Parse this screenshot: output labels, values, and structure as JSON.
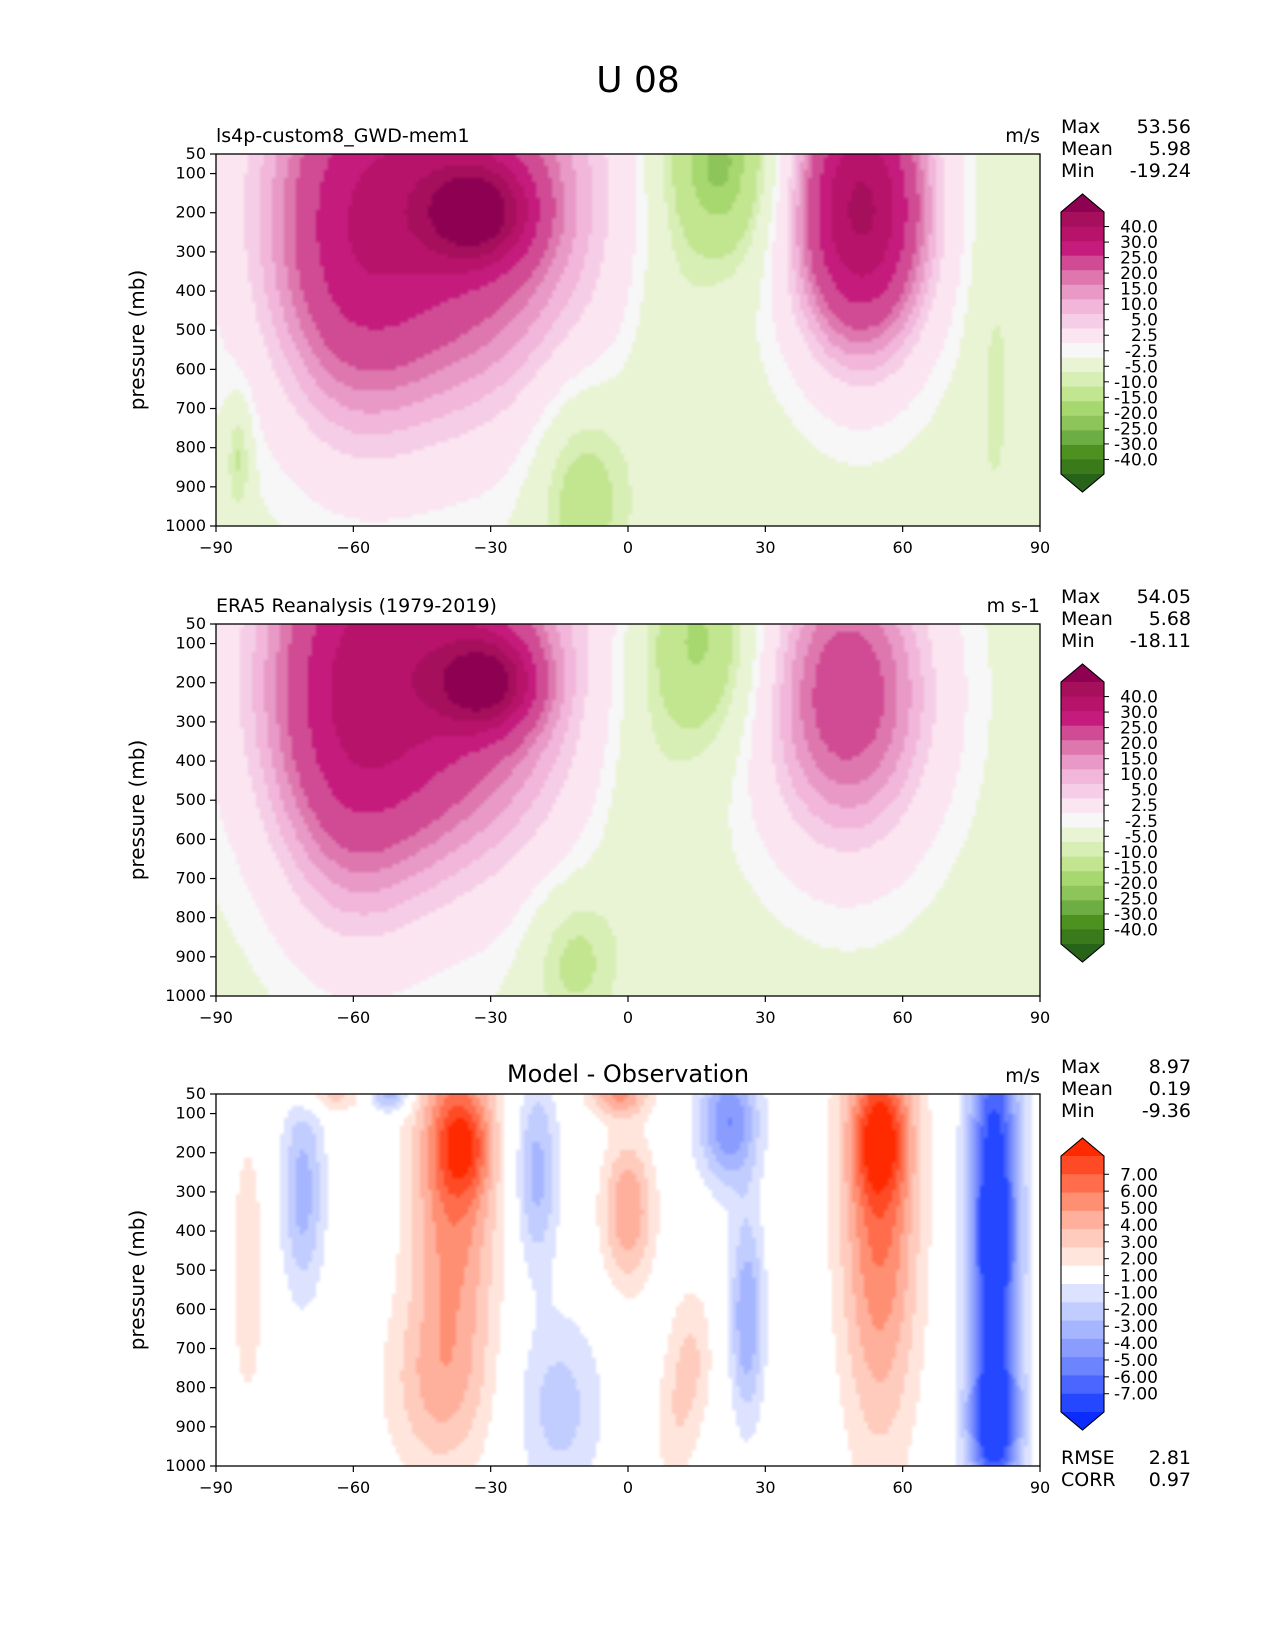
{
  "figure": {
    "title": "U 08"
  },
  "chart_data": [
    {
      "type": "contour",
      "panel": "model",
      "title_left": "ls4p-custom8_GWD-mem1",
      "title_center": "",
      "units": "m/s",
      "xlabel": "",
      "ylabel": "pressure (mb)",
      "xlim": [
        -90,
        90
      ],
      "ylim": [
        1000,
        50
      ],
      "xticks": [
        "−90",
        "−60",
        "−30",
        "0",
        "30",
        "60",
        "90"
      ],
      "yticks": [
        "50",
        "100",
        "200",
        "300",
        "400",
        "500",
        "600",
        "700",
        "800",
        "900",
        "1000"
      ],
      "stats": {
        "max_label": "Max",
        "max": "53.56",
        "mean_label": "Mean",
        "mean": "5.98",
        "min_label": "Min",
        "min": "-19.24"
      },
      "levels": [
        "40.0",
        "30.0",
        "25.0",
        "20.0",
        "15.0",
        "10.0",
        "5.0",
        "2.5",
        "-2.5",
        "-5.0",
        "-10.0",
        "-15.0",
        "-20.0",
        "-25.0",
        "-30.0",
        "-40.0"
      ],
      "colorbar_colors": [
        "#8e0152",
        "#a50f5c",
        "#b7136a",
        "#c51b7d",
        "#d04b93",
        "#de77ae",
        "#e899c5",
        "#f1b6da",
        "#f6cde6",
        "#fbe5f1",
        "#f7f7f7",
        "#e9f4d4",
        "#d7eeb5",
        "#c2e58f",
        "#a7d870",
        "#8ec55a",
        "#6ead44",
        "#4d9221",
        "#3a7a1a",
        "#276419"
      ],
      "features": [
        {
          "kind": "blob",
          "lat": -42,
          "p": 160,
          "lat_halfwidth": 40,
          "p_halfwidth": 620,
          "value": 28
        },
        {
          "kind": "blob",
          "lat": -33,
          "p": 200,
          "lat_halfwidth": 12,
          "p_halfwidth": 130,
          "value": 22
        },
        {
          "kind": "blob",
          "lat": -62,
          "p": 350,
          "lat_halfwidth": 18,
          "p_halfwidth": 520,
          "value": 9
        },
        {
          "kind": "blob",
          "lat": 51,
          "p": 190,
          "lat_halfwidth": 17,
          "p_halfwidth": 420,
          "value": 36
        },
        {
          "kind": "blob",
          "lat": 20,
          "p": 80,
          "lat_halfwidth": 14,
          "p_halfwidth": 280,
          "value": -16
        },
        {
          "kind": "blob",
          "lat": -10,
          "p": 900,
          "lat_halfwidth": 11,
          "p_halfwidth": 280,
          "value": -10
        },
        {
          "kind": "blob",
          "lat": 8,
          "p": 550,
          "lat_halfwidth": 9,
          "p_halfwidth": 320,
          "value": -4
        },
        {
          "kind": "blob",
          "lat": 80,
          "p": 600,
          "lat_halfwidth": 5,
          "p_halfwidth": 500,
          "value": -3.5
        },
        {
          "kind": "blob",
          "lat": -85,
          "p": 820,
          "lat_halfwidth": 3,
          "p_halfwidth": 160,
          "value": -8
        }
      ]
    },
    {
      "type": "contour",
      "panel": "observation",
      "title_left": "ERA5 Reanalysis (1979-2019)",
      "title_center": "",
      "units": "m s-1",
      "xlabel": "",
      "ylabel": "pressure (mb)",
      "xlim": [
        -90,
        90
      ],
      "ylim": [
        1000,
        50
      ],
      "xticks": [
        "−90",
        "−60",
        "−30",
        "0",
        "30",
        "60",
        "90"
      ],
      "yticks": [
        "50",
        "100",
        "200",
        "300",
        "400",
        "500",
        "600",
        "700",
        "800",
        "900",
        "1000"
      ],
      "stats": {
        "max_label": "Max",
        "max": "54.05",
        "mean_label": "Mean",
        "mean": "5.68",
        "min_label": "Min",
        "min": "-18.11"
      },
      "levels": [
        "40.0",
        "30.0",
        "25.0",
        "20.0",
        "15.0",
        "10.0",
        "5.0",
        "2.5",
        "-2.5",
        "-5.0",
        "-10.0",
        "-15.0",
        "-20.0",
        "-25.0",
        "-30.0",
        "-40.0"
      ],
      "colorbar_colors": [
        "#8e0152",
        "#a50f5c",
        "#b7136a",
        "#c51b7d",
        "#d04b93",
        "#de77ae",
        "#e899c5",
        "#f1b6da",
        "#f6cde6",
        "#fbe5f1",
        "#f7f7f7",
        "#e9f4d4",
        "#d7eeb5",
        "#c2e58f",
        "#a7d870",
        "#8ec55a",
        "#6ead44",
        "#4d9221",
        "#3a7a1a",
        "#276419"
      ],
      "features": [
        {
          "kind": "blob",
          "lat": -45,
          "p": 150,
          "lat_halfwidth": 38,
          "p_halfwidth": 600,
          "value": 29
        },
        {
          "kind": "blob",
          "lat": -31,
          "p": 200,
          "lat_halfwidth": 11,
          "p_halfwidth": 120,
          "value": 22
        },
        {
          "kind": "blob",
          "lat": -62,
          "p": 380,
          "lat_halfwidth": 18,
          "p_halfwidth": 560,
          "value": 10
        },
        {
          "kind": "blob",
          "lat": 48,
          "p": 230,
          "lat_halfwidth": 22,
          "p_halfwidth": 460,
          "value": 23
        },
        {
          "kind": "blob",
          "lat": 16,
          "p": 100,
          "lat_halfwidth": 14,
          "p_halfwidth": 300,
          "value": -14
        },
        {
          "kind": "blob",
          "lat": -12,
          "p": 900,
          "lat_halfwidth": 10,
          "p_halfwidth": 200,
          "value": -8
        },
        {
          "kind": "blob",
          "lat": 2,
          "p": 500,
          "lat_halfwidth": 11,
          "p_halfwidth": 380,
          "value": -3.5
        }
      ]
    },
    {
      "type": "contour",
      "panel": "difference",
      "title_left": "",
      "title_center": "Model - Observation",
      "units": "m/s",
      "xlabel": "",
      "ylabel": "pressure (mb)",
      "xlim": [
        -90,
        90
      ],
      "ylim": [
        1000,
        50
      ],
      "xticks": [
        "−90",
        "−60",
        "−30",
        "0",
        "30",
        "60",
        "90"
      ],
      "yticks": [
        "50",
        "100",
        "200",
        "300",
        "400",
        "500",
        "600",
        "700",
        "800",
        "900",
        "1000"
      ],
      "stats": {
        "max_label": "Max",
        "max": "8.97",
        "mean_label": "Mean",
        "mean": "0.19",
        "min_label": "Min",
        "min": "-9.36"
      },
      "metrics": {
        "rmse_label": "RMSE",
        "rmse": "2.81",
        "corr_label": "CORR",
        "corr": "0.97"
      },
      "levels": [
        "7.00",
        "6.00",
        "5.00",
        "4.00",
        "3.00",
        "2.00",
        "1.00",
        "-1.00",
        "-2.00",
        "-3.00",
        "-4.00",
        "-5.00",
        "-6.00",
        "-7.00"
      ],
      "colorbar_colors": [
        "#ff2a00",
        "#ff4a26",
        "#ff6d4d",
        "#ff8f73",
        "#ffb09d",
        "#ffcbbd",
        "#ffe5dc",
        "#ffffff",
        "#dde3ff",
        "#c2cdff",
        "#a6b5ff",
        "#8a9dff",
        "#6d84ff",
        "#4a66ff",
        "#2447ff",
        "#0a2cff"
      ],
      "features": [
        {
          "kind": "blob",
          "lat": -38,
          "p": 260,
          "lat_halfwidth": 10,
          "p_halfwidth": 500,
          "value": 5
        },
        {
          "kind": "blob",
          "lat": -36,
          "p": 180,
          "lat_halfwidth": 6,
          "p_halfwidth": 130,
          "value": 3.5
        },
        {
          "kind": "blob",
          "lat": -42,
          "p": 800,
          "lat_halfwidth": 12,
          "p_halfwidth": 250,
          "value": 2.5
        },
        {
          "kind": "blob",
          "lat": 55,
          "p": 300,
          "lat_halfwidth": 9,
          "p_halfwidth": 650,
          "value": 5.5
        },
        {
          "kind": "blob",
          "lat": 55,
          "p": 170,
          "lat_halfwidth": 6,
          "p_halfwidth": 150,
          "value": 3.5
        },
        {
          "kind": "blob",
          "lat": 0,
          "p": 350,
          "lat_halfwidth": 6,
          "p_halfwidth": 200,
          "value": 4
        },
        {
          "kind": "blob",
          "lat": 14,
          "p": 720,
          "lat_halfwidth": 5,
          "p_halfwidth": 200,
          "value": 2
        },
        {
          "kind": "blob",
          "lat": -83,
          "p": 500,
          "lat_halfwidth": 4,
          "p_halfwidth": 400,
          "value": 1.8
        },
        {
          "kind": "blob",
          "lat": -2,
          "p": 50,
          "lat_halfwidth": 7,
          "p_halfwidth": 60,
          "value": 4
        },
        {
          "kind": "blob",
          "lat": -65,
          "p": 50,
          "lat_halfwidth": 8,
          "p_halfwidth": 50,
          "value": 2.5
        },
        {
          "kind": "blob",
          "lat": 80,
          "p": 400,
          "lat_halfwidth": 6,
          "p_halfwidth": 650,
          "value": -9
        },
        {
          "kind": "blob",
          "lat": 80,
          "p": 900,
          "lat_halfwidth": 6,
          "p_halfwidth": 160,
          "value": -5
        },
        {
          "kind": "blob",
          "lat": 22,
          "p": 120,
          "lat_halfwidth": 7,
          "p_halfwidth": 170,
          "value": -5
        },
        {
          "kind": "blob",
          "lat": 26,
          "p": 620,
          "lat_halfwidth": 4,
          "p_halfwidth": 280,
          "value": -4
        },
        {
          "kind": "blob",
          "lat": -20,
          "p": 250,
          "lat_halfwidth": 5,
          "p_halfwidth": 260,
          "value": -3.5
        },
        {
          "kind": "blob",
          "lat": -15,
          "p": 850,
          "lat_halfwidth": 10,
          "p_halfwidth": 250,
          "value": -2.5
        },
        {
          "kind": "blob",
          "lat": -71,
          "p": 300,
          "lat_halfwidth": 5,
          "p_halfwidth": 280,
          "value": -3.5
        },
        {
          "kind": "blob",
          "lat": -52,
          "p": 50,
          "lat_halfwidth": 5,
          "p_halfwidth": 50,
          "value": -4
        },
        {
          "kind": "blob",
          "lat": 10,
          "p": 900,
          "lat_halfwidth": 5,
          "p_halfwidth": 200,
          "value": 1.5
        }
      ]
    }
  ]
}
